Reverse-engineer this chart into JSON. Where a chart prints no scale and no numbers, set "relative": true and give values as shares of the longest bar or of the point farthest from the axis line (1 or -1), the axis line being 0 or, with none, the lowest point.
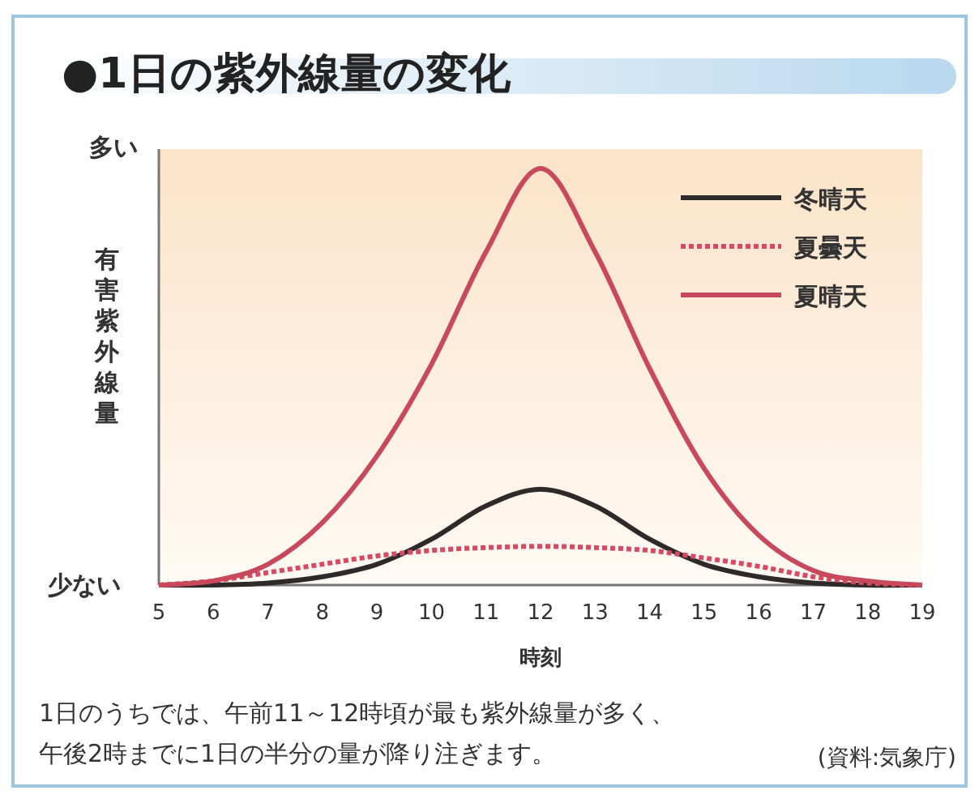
{
  "chart_data": {
    "type": "line",
    "title": "●1日の紫外線量の変化",
    "xlabel": "時刻",
    "ylabel": "有害紫外線量",
    "relative": true,
    "x": [
      5,
      6,
      7,
      8,
      9,
      10,
      11,
      12,
      13,
      14,
      15,
      16,
      17,
      18,
      19
    ],
    "series": [
      {
        "name": "冬晴天",
        "color": "#2e2a2a",
        "line_style": "solid",
        "values": [
          0,
          0,
          0.005,
          0.02,
          0.05,
          0.11,
          0.19,
          0.23,
          0.19,
          0.11,
          0.05,
          0.02,
          0.005,
          0,
          0
        ]
      },
      {
        "name": "夏曇天",
        "color": "#d84a62",
        "line_style": "dotted",
        "values": [
          0,
          0.01,
          0.03,
          0.05,
          0.07,
          0.083,
          0.09,
          0.093,
          0.09,
          0.083,
          0.065,
          0.045,
          0.02,
          0.005,
          0
        ]
      },
      {
        "name": "夏晴天",
        "color": "#c8485c",
        "line_style": "solid",
        "values": [
          0,
          0.01,
          0.05,
          0.15,
          0.31,
          0.53,
          0.8,
          1.0,
          0.8,
          0.52,
          0.28,
          0.12,
          0.035,
          0.01,
          0
        ]
      }
    ],
    "xlim": [
      5,
      19
    ],
    "xticks": [
      5,
      6,
      7,
      8,
      9,
      10,
      11,
      12,
      13,
      14,
      15,
      16,
      17,
      18,
      19
    ],
    "legend": "top right",
    "marker": "none",
    "grid": false,
    "annotations": [
      "多い",
      "少ない",
      "1日のうちでは、午前11～12時頃が最も紫外線量が多く、",
      "午後2時までに1日の半分の量が降り注ぎます。",
      "(資料:気象庁)"
    ]
  }
}
